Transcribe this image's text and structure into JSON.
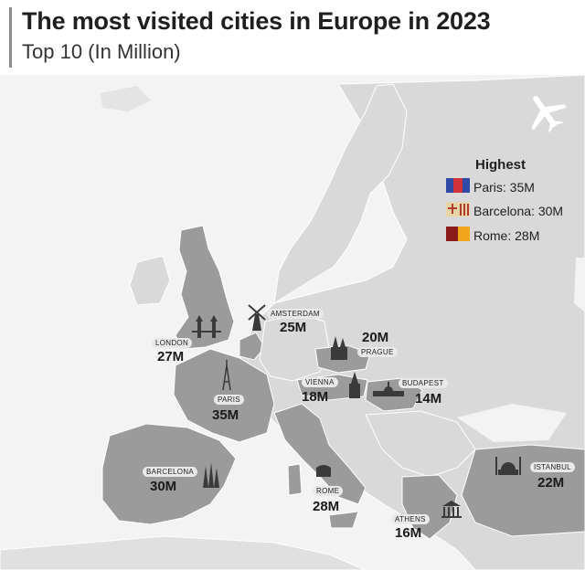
{
  "header": {
    "title": "The most visited cities in Europe in 2023",
    "subtitle": "Top 10 (In Million)"
  },
  "legend": {
    "title": "Highest",
    "items": [
      {
        "text": "Paris: 35M",
        "flag": "paris-flag"
      },
      {
        "text": "Barcelona: 30M",
        "flag": "barcelona-flag"
      },
      {
        "text": "Rome: 28M",
        "flag": "rome-flag"
      }
    ]
  },
  "cities": [
    {
      "name": "LONDON",
      "value": "27M",
      "icon": "tower-bridge-icon"
    },
    {
      "name": "AMSTERDAM",
      "value": "25M",
      "icon": "windmill-icon"
    },
    {
      "name": "PRAGUE",
      "value": "20M",
      "icon": "prague-castle-icon"
    },
    {
      "name": "VIENNA",
      "value": "18M",
      "icon": "cathedral-icon"
    },
    {
      "name": "BUDAPEST",
      "value": "14M",
      "icon": "parliament-icon"
    },
    {
      "name": "PARIS",
      "value": "35M",
      "icon": "eiffel-tower-icon"
    },
    {
      "name": "BARCELONA",
      "value": "30M",
      "icon": "sagrada-familia-icon"
    },
    {
      "name": "ROME",
      "value": "28M",
      "icon": "colosseum-icon"
    },
    {
      "name": "ISTANBUL",
      "value": "22M",
      "icon": "mosque-icon"
    },
    {
      "name": "ATHENS",
      "value": "16M",
      "icon": "parthenon-icon"
    }
  ],
  "colors": {
    "highlight": "#9b9b9b",
    "land": "#d9d9d9",
    "sea": "#f3f3f3",
    "border": "#ffffff"
  }
}
